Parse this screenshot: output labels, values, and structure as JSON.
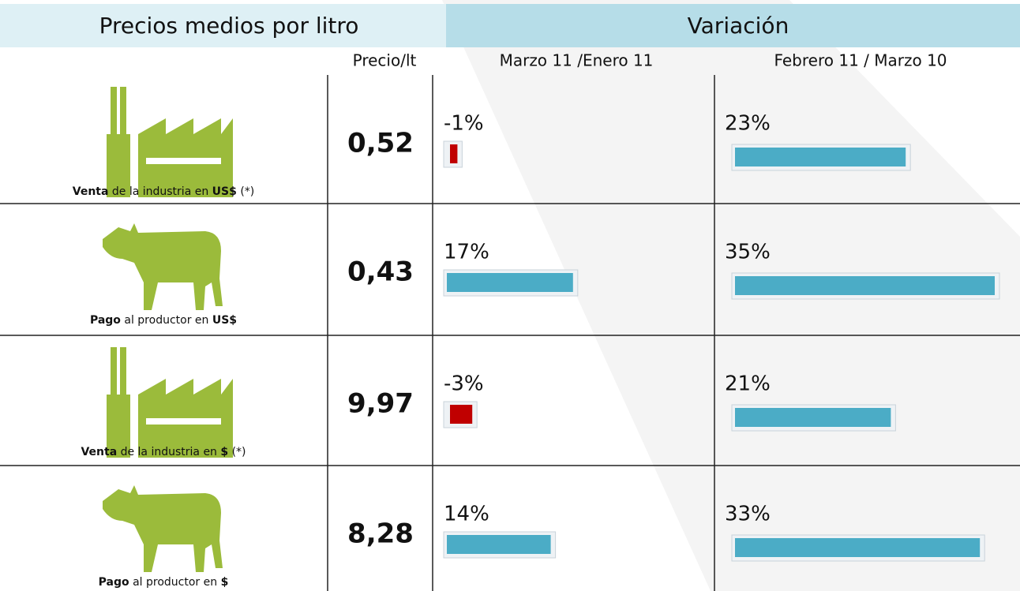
{
  "header": {
    "left": "Precios medios por litro",
    "right": "Variación"
  },
  "columns": {
    "price": "Precio/lt",
    "var1": "Marzo 11 /Enero 11",
    "var2": "Febrero 11 / Marzo 10"
  },
  "rows": [
    {
      "label": [
        {
          "text": "Venta",
          "bold": true
        },
        {
          "text": " de la industria en "
        },
        {
          "text": "US$",
          "bold": true
        },
        {
          "text": " (*)"
        }
      ],
      "price": "0,52",
      "var1": {
        "value": -1,
        "label": "-1%"
      },
      "var2": {
        "value": 23,
        "label": "23%"
      }
    },
    {
      "label": [
        {
          "text": "Pago",
          "bold": true
        },
        {
          "text": " al productor en "
        },
        {
          "text": "US$",
          "bold": true
        }
      ],
      "price": "0,43",
      "var1": {
        "value": 17,
        "label": "17%"
      },
      "var2": {
        "value": 35,
        "label": "35%"
      }
    },
    {
      "label": [
        {
          "text": "Venta",
          "bold": true
        },
        {
          "text": " de la industria en "
        },
        {
          "text": "$",
          "bold": true
        },
        {
          "text": " (*)"
        }
      ],
      "price": "9,97",
      "var1": {
        "value": -3,
        "label": "-3%"
      },
      "var2": {
        "value": 21,
        "label": "21%"
      }
    },
    {
      "label": [
        {
          "text": "Pago",
          "bold": true
        },
        {
          "text": " al productor en "
        },
        {
          "text": "$",
          "bold": true
        }
      ],
      "price": "8,28",
      "var1": {
        "value": 14,
        "label": "14%"
      },
      "var2": {
        "value": 33,
        "label": "33%"
      }
    }
  ]
}
